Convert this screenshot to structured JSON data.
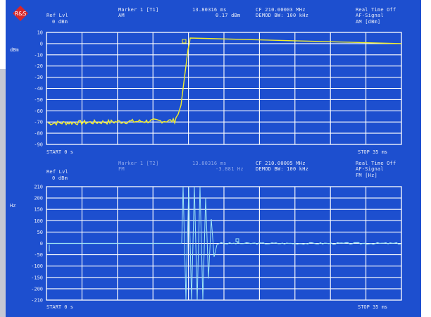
{
  "top_header": {
    "ref_lvl_label": "Ref Lvl",
    "ref_lvl_value": "0 dBm",
    "marker_label": "Marker 1 [T1]",
    "marker_mode": "AM",
    "marker_time": "13.80316 ms",
    "marker_level": "0.17 dBm",
    "center_freq": "CF 210.00003 MHz",
    "demod_bw": "DEMOD BW: 100 kHz",
    "realtime": "Real Time Off",
    "signal": "AF-Signal",
    "unit": "AM [dBm]"
  },
  "top_plot": {
    "y_unit": "dBm",
    "y_ticks": [
      "10",
      "0",
      "-10",
      "-20",
      "-30",
      "-40",
      "-50",
      "-60",
      "-70",
      "-80",
      "-90"
    ],
    "start_label": "START 0 s",
    "stop_label": "STOP 35 ms"
  },
  "bottom_header": {
    "ref_lvl_label": "Ref Lvl",
    "ref_lvl_value": "0 dBm",
    "marker_label": "Marker 1 [T2]",
    "marker_mode": "FM",
    "marker_time": "13.80316 ms",
    "marker_level": "-3.881 Hz",
    "center_freq": "CF 210.00005 MHz",
    "demod_bw": "DEMOD BW: 100 kHz",
    "realtime": "Real Time Off",
    "signal": "AF-Signal",
    "unit": "FM [Hz]"
  },
  "bottom_plot": {
    "y_unit": "Hz",
    "y_ticks": [
      "210",
      "200",
      "150",
      "100",
      "50",
      "0",
      "-50",
      "-100",
      "-150",
      "-200",
      "-210"
    ],
    "start_label": "START 0 s",
    "stop_label": "STOP 35 ms"
  },
  "colors": {
    "screen": "#1d4fcf",
    "grid": "#ffffff",
    "trace_am": "#f2ee2a",
    "trace_fm": "#9fe6f5",
    "logo": "#d7262a"
  },
  "icons": {
    "logo": "rohde-schwarz-logo"
  }
}
